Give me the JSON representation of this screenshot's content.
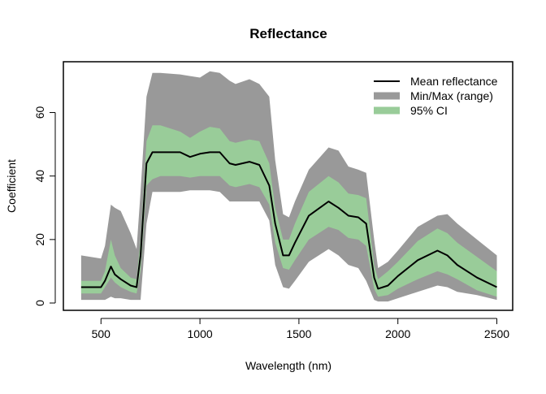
{
  "chart_data": {
    "type": "area",
    "title": "Reflectance",
    "xlabel": "Wavelength (nm)",
    "ylabel": "Coefficient",
    "xlim": [
      310,
      2580
    ],
    "ylim": [
      -2.3,
      76
    ],
    "xticks": [
      500,
      1000,
      1500,
      2000,
      2500
    ],
    "yticks": [
      0,
      20,
      40,
      60
    ],
    "grid": false,
    "legend_position": "top-right",
    "legend": [
      {
        "label": "Mean reflectance",
        "kind": "line",
        "color": "#000000"
      },
      {
        "label": "Min/Max (range)",
        "kind": "band",
        "color": "#999999"
      },
      {
        "label": "95% CI",
        "kind": "band",
        "color": "#99cc99"
      }
    ],
    "series": [
      {
        "name": "Mean reflectance",
        "x": [
          400,
          500,
          520,
          550,
          570,
          600,
          650,
          680,
          700,
          730,
          760,
          800,
          900,
          950,
          1000,
          1050,
          1100,
          1150,
          1180,
          1250,
          1300,
          1350,
          1380,
          1420,
          1450,
          1480,
          1550,
          1650,
          1700,
          1750,
          1800,
          1840,
          1880,
          1900,
          1950,
          2000,
          2100,
          2200,
          2250,
          2300,
          2400,
          2500
        ],
        "y": [
          5,
          5,
          7,
          11.5,
          9,
          7.5,
          5.5,
          5,
          15,
          44,
          47.5,
          47.5,
          47.5,
          46,
          47,
          47.5,
          47.5,
          44,
          43.5,
          44.5,
          43.5,
          37,
          25,
          15,
          15,
          19,
          27.5,
          32,
          30,
          27.5,
          27,
          25,
          8,
          4.5,
          5.5,
          8.5,
          13.5,
          16.5,
          15,
          12,
          8,
          5
        ]
      },
      {
        "name": "95% CI",
        "x": [
          400,
          500,
          520,
          550,
          570,
          600,
          650,
          680,
          700,
          730,
          760,
          800,
          900,
          950,
          1000,
          1050,
          1100,
          1150,
          1180,
          1250,
          1300,
          1350,
          1380,
          1420,
          1450,
          1480,
          1550,
          1650,
          1700,
          1750,
          1800,
          1840,
          1880,
          1900,
          1950,
          2000,
          2100,
          2200,
          2250,
          2300,
          2400,
          2500
        ],
        "upper": [
          7,
          7,
          10,
          20,
          15,
          11,
          8,
          7.5,
          20,
          51,
          56,
          56,
          54,
          52,
          54,
          55.5,
          55,
          51,
          50.5,
          51.5,
          51,
          44,
          30,
          20,
          20,
          25,
          35,
          40,
          38,
          34.5,
          34,
          33,
          12,
          7.5,
          10,
          13,
          19.5,
          23.5,
          22,
          19,
          14.5,
          10
        ],
        "lower": [
          3,
          3,
          5,
          8,
          6.5,
          5,
          3.5,
          3,
          10,
          37,
          39,
          40,
          40,
          39.5,
          40,
          40,
          40,
          37,
          36.5,
          37.5,
          36.5,
          31,
          19,
          11,
          10.5,
          13.5,
          20,
          24,
          23,
          20.5,
          20,
          18,
          4.5,
          2,
          2.5,
          4.5,
          7.5,
          10,
          9,
          7.5,
          4,
          2
        ]
      },
      {
        "name": "Min/Max (range)",
        "x": [
          400,
          500,
          520,
          550,
          570,
          600,
          650,
          680,
          700,
          730,
          760,
          800,
          900,
          950,
          1000,
          1050,
          1100,
          1150,
          1180,
          1250,
          1300,
          1350,
          1380,
          1420,
          1450,
          1480,
          1550,
          1650,
          1700,
          1750,
          1800,
          1840,
          1880,
          1900,
          1950,
          2000,
          2100,
          2200,
          2250,
          2300,
          2400,
          2500
        ],
        "upper": [
          15,
          14,
          18,
          31,
          30,
          29,
          22,
          17,
          35,
          65,
          72.5,
          72.5,
          72,
          71.5,
          71,
          73,
          72.5,
          70,
          69,
          70.5,
          69,
          65,
          45,
          28,
          27,
          32,
          42,
          49,
          48,
          43,
          42,
          41,
          20,
          11,
          13,
          16.5,
          24,
          27.5,
          28,
          25,
          20,
          15
        ],
        "lower": [
          1,
          1,
          1,
          2,
          1.5,
          1.5,
          1,
          1,
          1,
          25,
          35,
          35,
          35,
          35.5,
          35.5,
          35.5,
          35,
          32,
          32,
          32,
          32,
          26,
          12,
          5,
          4.5,
          7,
          13,
          17,
          15,
          12,
          11,
          7,
          1,
          0.5,
          0.5,
          1.5,
          3.5,
          5.5,
          5,
          3.5,
          2.5,
          1
        ]
      }
    ]
  }
}
